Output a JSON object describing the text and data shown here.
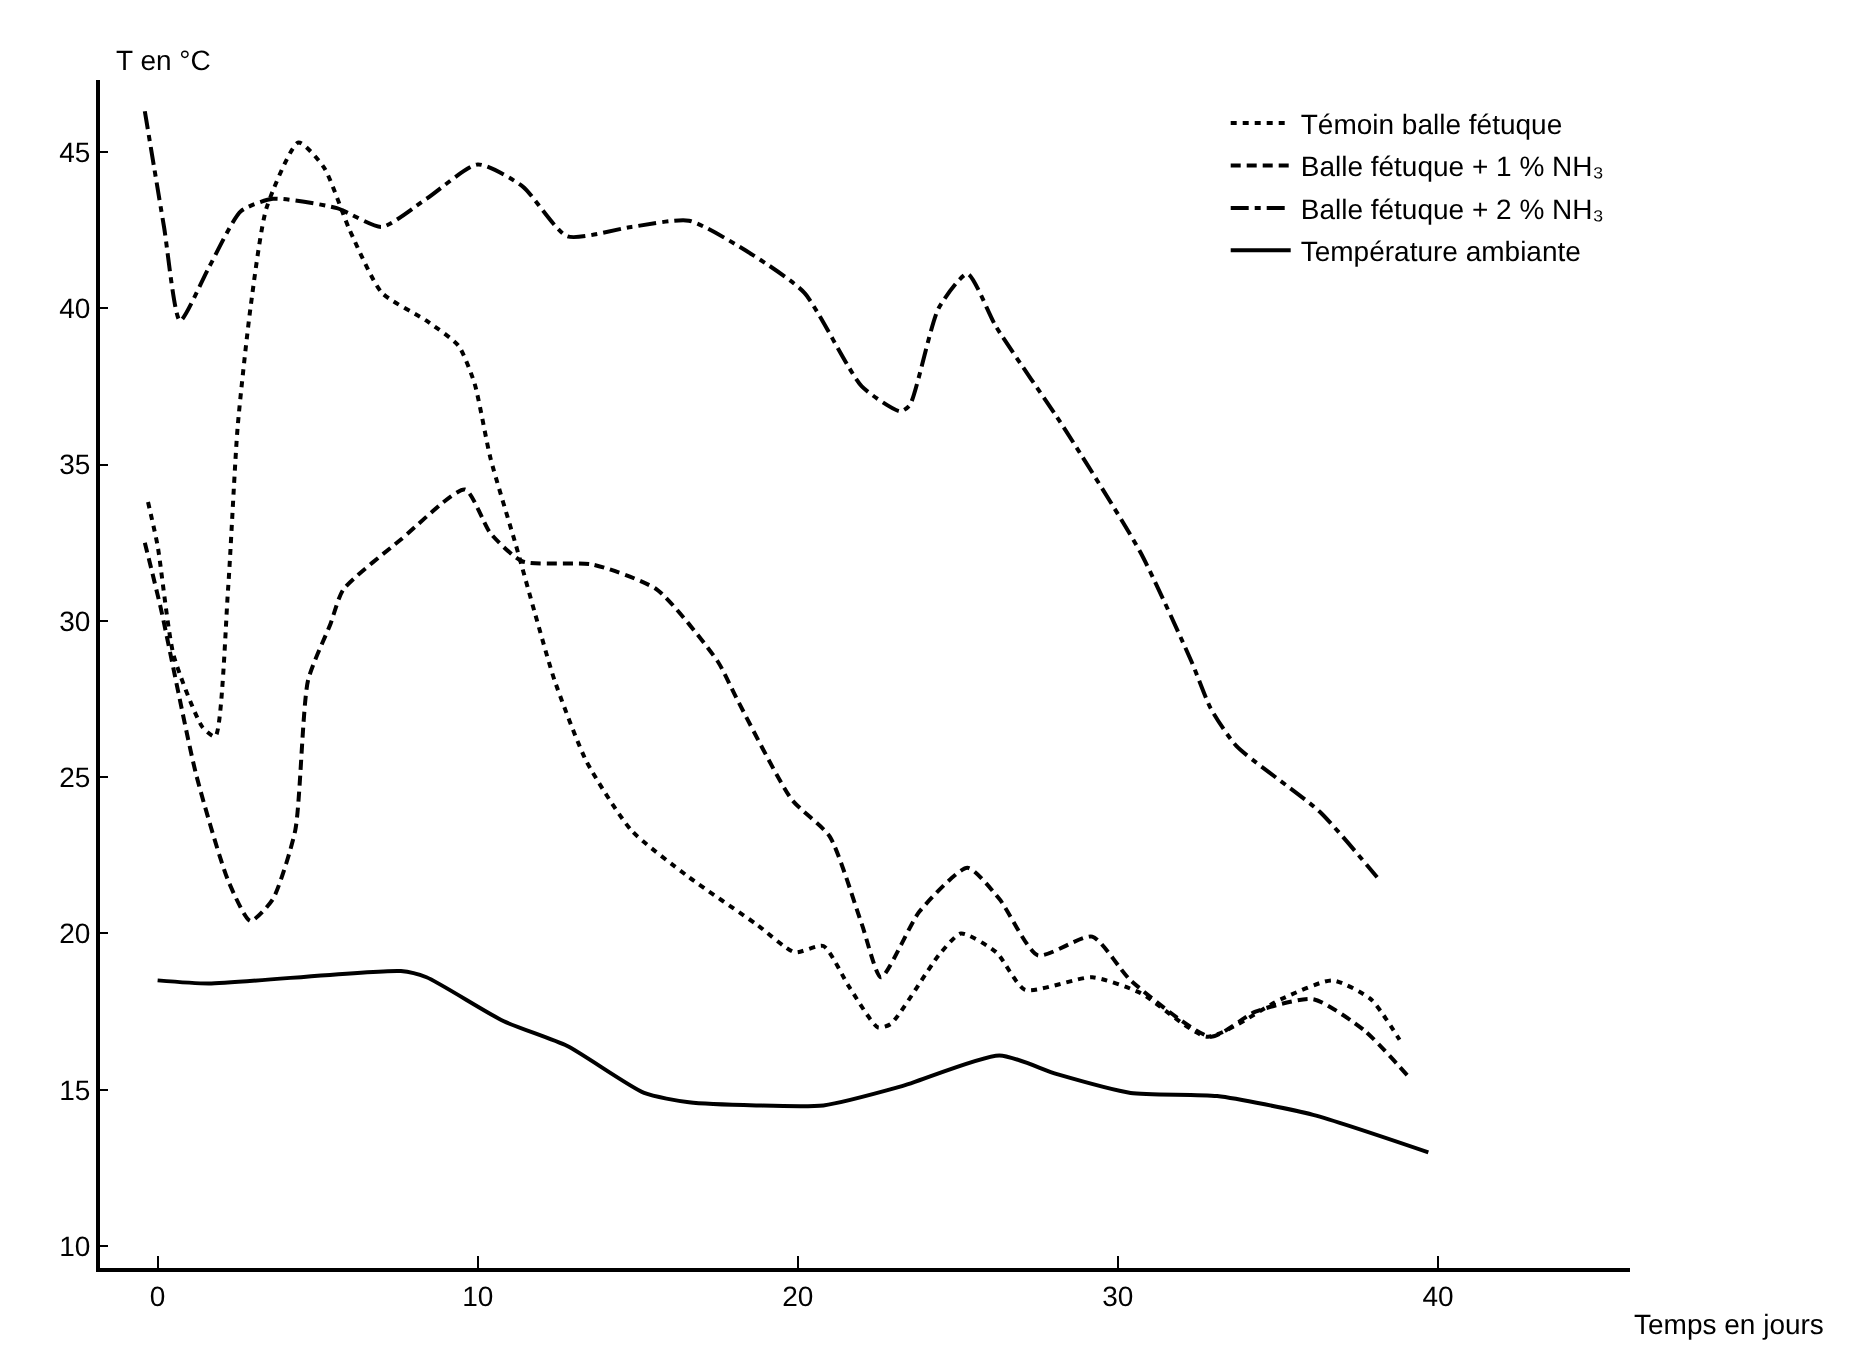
{
  "chart_data": {
    "type": "line",
    "xlabel": "Temps en jours",
    "ylabel": "T en °C",
    "xlim": [
      -1.8,
      46
    ],
    "ylim": [
      9.3,
      47.3
    ],
    "xticks": [
      0,
      10,
      20,
      30,
      40
    ],
    "yticks": [
      10,
      15,
      20,
      25,
      30,
      35,
      40,
      45
    ],
    "legend": "top right",
    "marker": "none",
    "series": [
      {
        "name": "Témoin balle fétuque",
        "color": "#000000",
        "line_style": "dotted",
        "x": [
          -0.3,
          0,
          0.5,
          1.4,
          1.8,
          2.2,
          2.5,
          2.9,
          3.4,
          4.4,
          5.2,
          6,
          7,
          8.4,
          9.4,
          9.9,
          10.4,
          11.2,
          11.8,
          12.4,
          13.4,
          14.8,
          16.6,
          18.7,
          19.9,
          20.8,
          21.6,
          22.5,
          22.9,
          24.4,
          25.1,
          26.2,
          27.1,
          29.2,
          30.7,
          32.8,
          35.1,
          36.7,
          37.9,
          38.8
        ],
        "values": [
          33.8,
          32.4,
          28.9,
          26.6,
          26.3,
          31,
          36.2,
          40,
          43.2,
          45.3,
          44.5,
          42.5,
          40.5,
          39.6,
          38.8,
          37.6,
          35.2,
          32.4,
          30.2,
          28.1,
          25.5,
          23.3,
          21.8,
          20.3,
          19.4,
          19.6,
          18.3,
          17,
          17.1,
          19.3,
          20,
          19.4,
          18.2,
          18.6,
          18.1,
          16.7,
          17.9,
          18.5,
          17.9,
          16.6
        ]
      },
      {
        "name": "Balle fétuque + 1 % NH₃",
        "color": "#000000",
        "line_style": "dashed",
        "x": [
          -0.4,
          0.1,
          1.2,
          2.2,
          2.9,
          3.6,
          4.3,
          4.7,
          5.4,
          5.8,
          7.6,
          9.6,
          10.4,
          11.4,
          13.6,
          15.6,
          17.5,
          18.1,
          19.8,
          21,
          22,
          22.6,
          23.8,
          25.3,
          26.3,
          27.5,
          29.2,
          30.4,
          32.9,
          34.3,
          36.1,
          37.7,
          39.1
        ],
        "values": [
          32.5,
          30.4,
          25.1,
          21.7,
          20.4,
          21.1,
          23.3,
          28.1,
          29.9,
          31,
          32.6,
          34.2,
          32.8,
          31.9,
          31.8,
          31,
          28.7,
          27.5,
          24.3,
          23.1,
          20.3,
          18.6,
          20.7,
          22.1,
          21.1,
          19.3,
          19.9,
          18.5,
          16.7,
          17.5,
          17.9,
          16.9,
          15.4
        ]
      },
      {
        "name": "Balle fétuque + 2 % NH₃",
        "color": "#000000",
        "line_style": "dashdot",
        "x": [
          -0.4,
          0.2,
          0.7,
          1.6,
          2.6,
          3.6,
          5.6,
          7,
          8.4,
          10,
          11.4,
          12.8,
          14.8,
          16.6,
          18.6,
          20.2,
          22,
          23.2,
          23.5,
          24.4,
          25.3,
          26.2,
          28.3,
          30.7,
          32.3,
          32.9,
          33.7,
          36.3,
          38.1
        ],
        "values": [
          46.3,
          42.6,
          39.6,
          41.3,
          43.1,
          43.5,
          43.2,
          42.6,
          43.5,
          44.6,
          43.9,
          42.3,
          42.6,
          42.8,
          41.7,
          40.5,
          37.5,
          36.7,
          36.9,
          40,
          41.1,
          39.4,
          36.2,
          32.2,
          28.7,
          27.2,
          26,
          23.9,
          21.8
        ]
      },
      {
        "name": "Température ambiante",
        "color": "#000000",
        "line_style": "solid",
        "x": [
          0,
          1.6,
          7.6,
          8.4,
          10.8,
          12.8,
          15.2,
          16.6,
          18.7,
          20.8,
          23.2,
          26.3,
          28.1,
          30.4,
          33.1,
          36.1,
          39.7
        ],
        "values": [
          18.5,
          18.4,
          18.8,
          18.6,
          17.2,
          16.4,
          14.9,
          14.6,
          14.5,
          14.5,
          15.1,
          16.1,
          15.5,
          14.9,
          14.8,
          14.2,
          13.0
        ]
      }
    ]
  }
}
